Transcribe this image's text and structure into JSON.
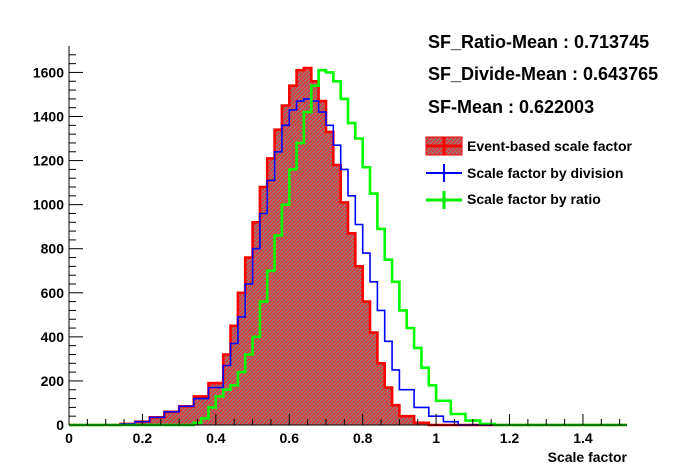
{
  "stats": [
    "SF_Ratio-Mean : 0.713745",
    "SF_Divide-Mean : 0.643765",
    "SF-Mean : 0.622003"
  ],
  "chart_data": {
    "type": "area",
    "xlabel": "Scale factor",
    "ylabel": "",
    "xlim": [
      0,
      1.52
    ],
    "ylim": [
      0,
      1720
    ],
    "x_ticks": [
      0,
      0.2,
      0.4,
      0.6,
      0.8,
      1,
      1.2,
      1.4
    ],
    "x_tick_labels": [
      "0",
      "0.2",
      "0.4",
      "0.6",
      "0.8",
      "1",
      "1.2",
      "1.4"
    ],
    "y_ticks": [
      0,
      200,
      400,
      600,
      800,
      1000,
      1200,
      1400,
      1600
    ],
    "y_tick_labels": [
      "0",
      "200",
      "400",
      "600",
      "800",
      "1000",
      "1200",
      "1400",
      "1600"
    ],
    "grid": false,
    "legend_position": "top-right",
    "series": [
      {
        "name": "Event-based scale factor",
        "color": "#ff0000",
        "fill": "hatched-red",
        "x": [
          0.1,
          0.14,
          0.18,
          0.22,
          0.26,
          0.3,
          0.34,
          0.38,
          0.42,
          0.44,
          0.46,
          0.48,
          0.5,
          0.52,
          0.54,
          0.56,
          0.58,
          0.6,
          0.62,
          0.64,
          0.66,
          0.68,
          0.7,
          0.72,
          0.74,
          0.76,
          0.78,
          0.8,
          0.82,
          0.84,
          0.86,
          0.88,
          0.9,
          0.94,
          0.98
        ],
        "y": [
          0,
          5,
          15,
          35,
          60,
          85,
          130,
          190,
          320,
          450,
          600,
          760,
          920,
          1080,
          1210,
          1340,
          1450,
          1540,
          1610,
          1620,
          1560,
          1470,
          1330,
          1180,
          1010,
          870,
          720,
          560,
          420,
          280,
          170,
          90,
          40,
          10,
          0
        ]
      },
      {
        "name": "Scale factor by division",
        "color": "#0000ff",
        "x": [
          0.1,
          0.14,
          0.18,
          0.22,
          0.26,
          0.3,
          0.34,
          0.38,
          0.42,
          0.44,
          0.46,
          0.48,
          0.5,
          0.52,
          0.54,
          0.56,
          0.58,
          0.6,
          0.62,
          0.64,
          0.66,
          0.68,
          0.7,
          0.72,
          0.74,
          0.76,
          0.78,
          0.8,
          0.82,
          0.84,
          0.86,
          0.88,
          0.9,
          0.94,
          0.98,
          1.02,
          1.06
        ],
        "y": [
          0,
          5,
          15,
          35,
          60,
          85,
          120,
          170,
          270,
          370,
          490,
          640,
          800,
          960,
          1110,
          1240,
          1360,
          1430,
          1470,
          1480,
          1470,
          1420,
          1360,
          1270,
          1160,
          1040,
          910,
          780,
          650,
          520,
          380,
          250,
          160,
          80,
          40,
          15,
          0
        ]
      },
      {
        "name": "Scale factor by ratio",
        "color": "#00ff00",
        "x": [
          0.3,
          0.34,
          0.36,
          0.38,
          0.4,
          0.42,
          0.44,
          0.46,
          0.48,
          0.5,
          0.52,
          0.54,
          0.56,
          0.58,
          0.6,
          0.62,
          0.64,
          0.66,
          0.68,
          0.7,
          0.72,
          0.74,
          0.76,
          0.78,
          0.8,
          0.82,
          0.84,
          0.86,
          0.88,
          0.9,
          0.92,
          0.94,
          0.96,
          0.98,
          1.0,
          1.04,
          1.08,
          1.12,
          1.16
        ],
        "y": [
          0,
          10,
          30,
          80,
          130,
          160,
          180,
          240,
          320,
          400,
          560,
          700,
          860,
          1000,
          1160,
          1280,
          1420,
          1540,
          1610,
          1600,
          1560,
          1480,
          1370,
          1300,
          1170,
          1050,
          890,
          750,
          650,
          520,
          440,
          350,
          260,
          180,
          110,
          50,
          20,
          5,
          0
        ]
      }
    ]
  }
}
